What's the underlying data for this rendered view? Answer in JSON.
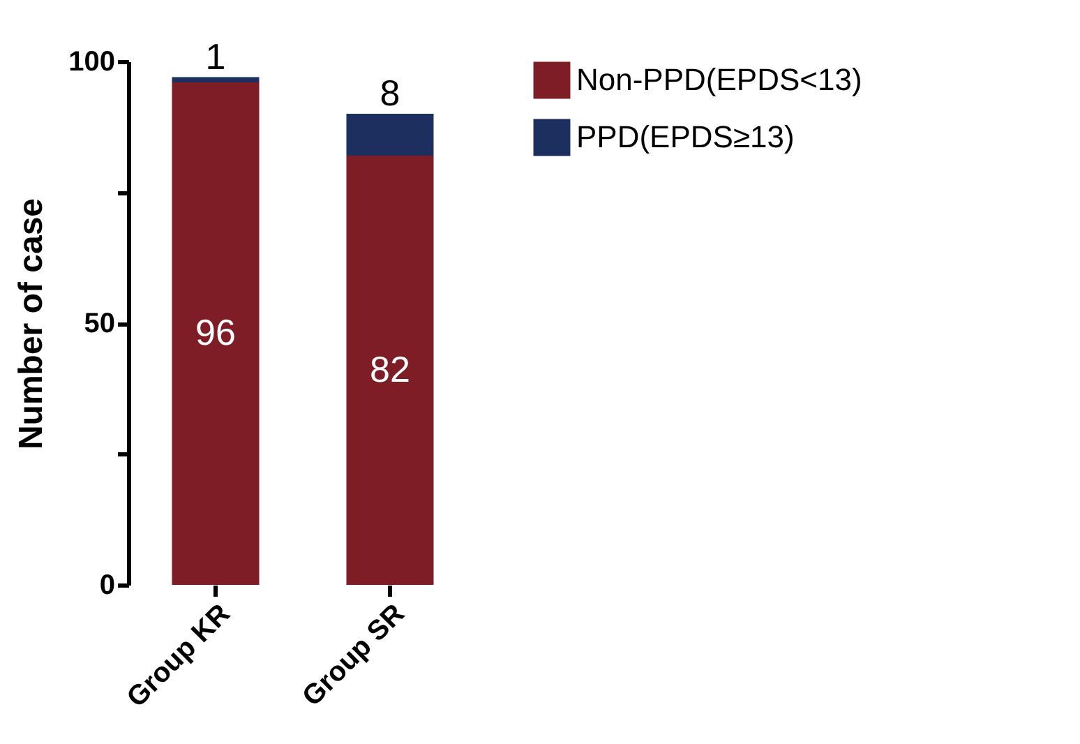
{
  "chart_data": {
    "type": "bar",
    "stacked": true,
    "categories": [
      "Group KR",
      "Group SR"
    ],
    "series": [
      {
        "name": "Non-PPD(EPDS<13)",
        "color": "#7f1d26",
        "values": [
          96,
          82
        ]
      },
      {
        "name": "PPD(EPDS≥13)",
        "color": "#1c2f5e",
        "values": [
          1,
          8
        ]
      }
    ],
    "ylabel": "Number of case",
    "ylim": [
      0,
      100
    ],
    "yticks": [
      0,
      {
        "value": 25,
        "label": null
      },
      50,
      {
        "value": 75,
        "label": null
      },
      100
    ],
    "data_labels": true,
    "legend": "top right",
    "grid": false
  }
}
